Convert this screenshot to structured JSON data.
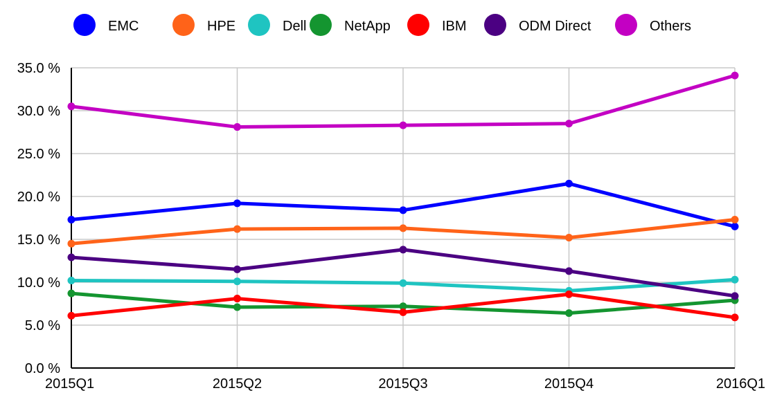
{
  "chart_data": {
    "type": "line",
    "title": "",
    "xlabel": "",
    "ylabel": "",
    "categories": [
      "2015Q1",
      "2015Q2",
      "2015Q3",
      "2015Q4",
      "2016Q1"
    ],
    "ylim": [
      0,
      35
    ],
    "yticks": [
      0,
      5,
      10,
      15,
      20,
      25,
      30,
      35
    ],
    "ytick_labels": [
      "0.0 %",
      "5.0 %",
      "10.0 %",
      "15.0 %",
      "20.0 %",
      "25.0 %",
      "30.0 %",
      "35.0 %"
    ],
    "grid": true,
    "legend_position": "top",
    "series": [
      {
        "name": "EMC",
        "color": "#0000ff",
        "values": [
          17.3,
          19.2,
          18.4,
          21.5,
          16.5
        ]
      },
      {
        "name": "HPE",
        "color": "#ff6319",
        "values": [
          14.5,
          16.2,
          16.3,
          15.2,
          17.3
        ]
      },
      {
        "name": "Dell",
        "color": "#1fc4c1",
        "values": [
          10.2,
          10.1,
          9.9,
          9.0,
          10.3
        ]
      },
      {
        "name": "NetApp",
        "color": "#149530",
        "values": [
          8.7,
          7.1,
          7.2,
          6.4,
          7.9
        ]
      },
      {
        "name": "IBM",
        "color": "#ff0000",
        "values": [
          6.1,
          8.1,
          6.5,
          8.6,
          5.9
        ]
      },
      {
        "name": "ODM Direct",
        "color": "#4b0082",
        "values": [
          12.9,
          11.5,
          13.8,
          11.3,
          8.4
        ]
      },
      {
        "name": "Others",
        "color": "#c300c3",
        "values": [
          30.5,
          28.1,
          28.3,
          28.5,
          34.1
        ]
      }
    ]
  }
}
